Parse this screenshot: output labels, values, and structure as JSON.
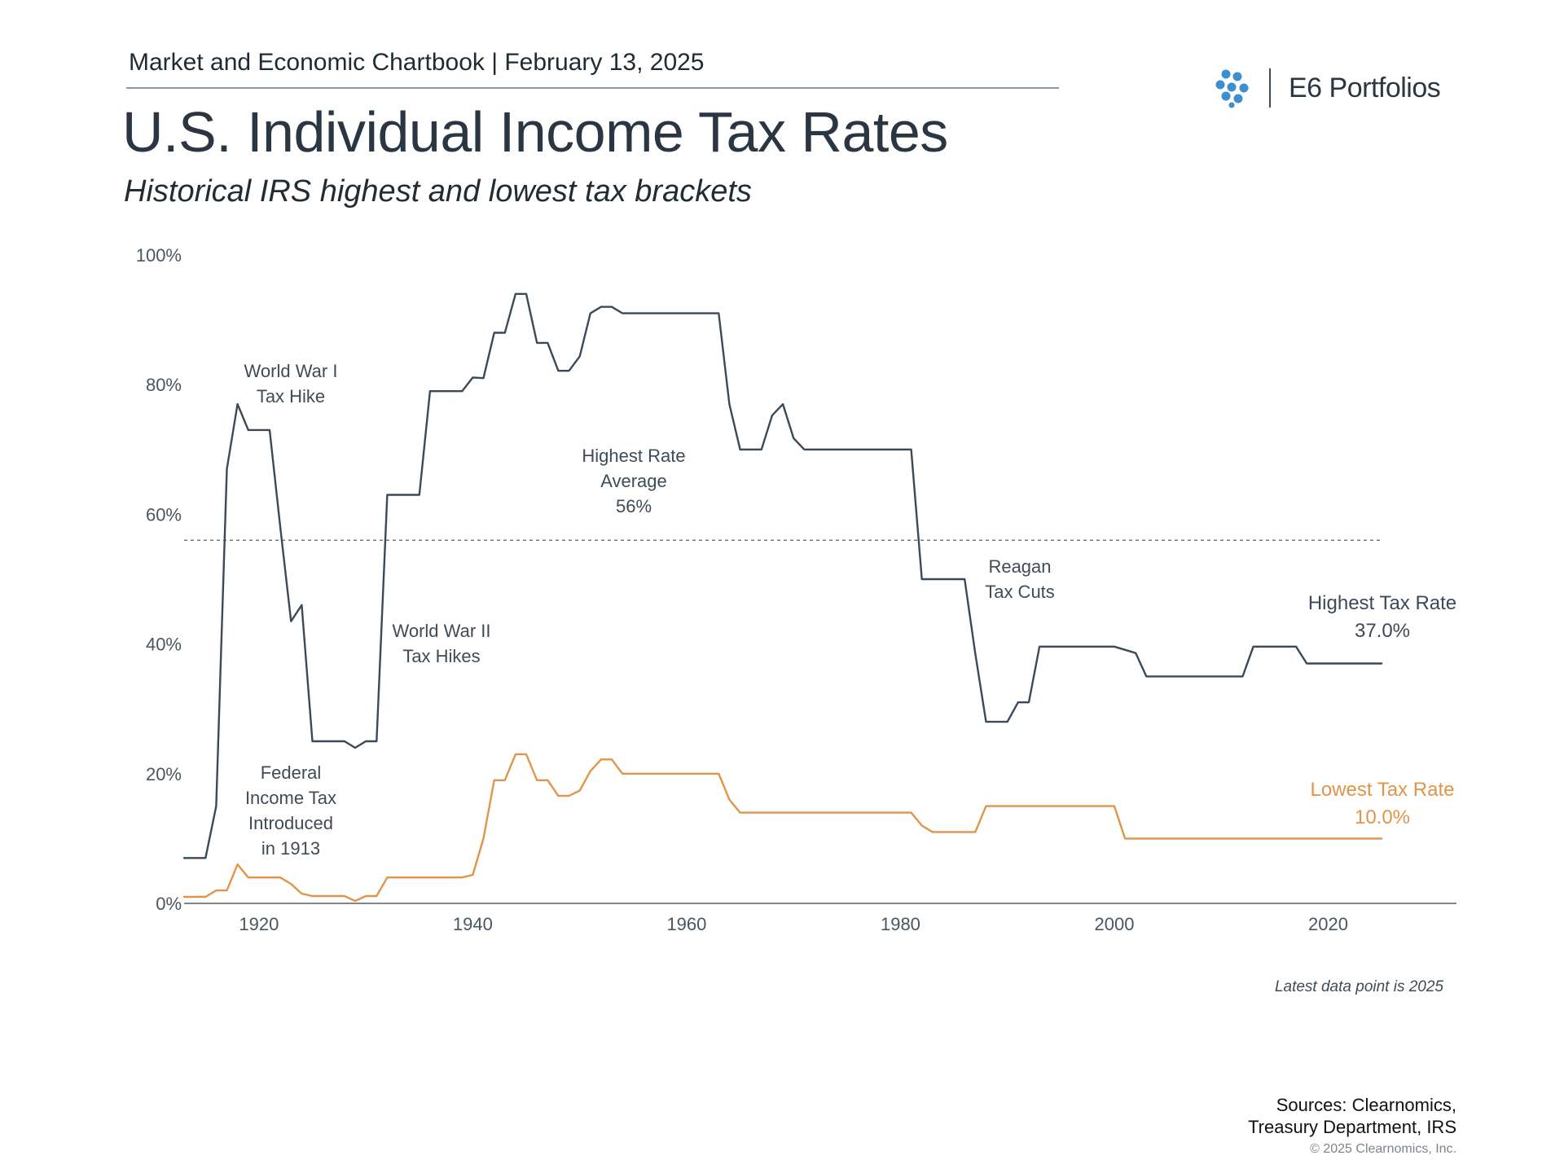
{
  "header": {
    "chartbook": "Market and Economic Chartbook | February 13, 2025",
    "brand": "E6 Portfolios",
    "title": "U.S. Individual Income Tax Rates",
    "subtitle": "Historical IRS highest and lowest tax brackets"
  },
  "annotations": {
    "ww1": [
      "World War I",
      "Tax Hike"
    ],
    "ww2": [
      "World War II",
      "Tax Hikes"
    ],
    "average": [
      "Highest Rate",
      "Average",
      "56%"
    ],
    "reagan": [
      "Reagan",
      "Tax Cuts"
    ],
    "federal": [
      "Federal",
      "Income Tax",
      "Introduced",
      "in 1913"
    ]
  },
  "note": "Latest data point is 2025",
  "footer": {
    "sources_line1": "Sources: Clearnomics,",
    "sources_line2": "Treasury Department, IRS",
    "copyright": "© 2025 Clearnomics, Inc."
  },
  "colors": {
    "highest": "#3b4a58",
    "lowest": "#e0954a",
    "average_line": "#6f7b86",
    "axis": "#555f68",
    "logo": "#3d8fd0"
  },
  "chart_data": {
    "type": "line",
    "xlim": [
      1913,
      2032
    ],
    "ylim": [
      0,
      100
    ],
    "x_ticks": [
      1920,
      1940,
      1960,
      1980,
      2000,
      2020
    ],
    "x_tick_labels": [
      "1920",
      "1940",
      "1960",
      "1980",
      "2000",
      "2020"
    ],
    "y_ticks": [
      0,
      20,
      40,
      60,
      80,
      100
    ],
    "y_tick_labels": [
      "0%",
      "20%",
      "40%",
      "60%",
      "80%",
      "100%"
    ],
    "grid": false,
    "average": {
      "value": 56,
      "label": "Highest Rate Average 56%"
    },
    "series": [
      {
        "name": "Highest Tax Rate",
        "end_label": "37.0%",
        "points": [
          [
            1913,
            7
          ],
          [
            1915,
            7
          ],
          [
            1916,
            15
          ],
          [
            1917,
            67
          ],
          [
            1918,
            77
          ],
          [
            1919,
            73
          ],
          [
            1921,
            73
          ],
          [
            1922,
            58
          ],
          [
            1923,
            43.5
          ],
          [
            1924,
            46
          ],
          [
            1925,
            25
          ],
          [
            1928,
            25
          ],
          [
            1929,
            24
          ],
          [
            1930,
            25
          ],
          [
            1931,
            25
          ],
          [
            1932,
            63
          ],
          [
            1935,
            63
          ],
          [
            1936,
            79
          ],
          [
            1939,
            79
          ],
          [
            1940,
            81.1
          ],
          [
            1941,
            81
          ],
          [
            1942,
            88
          ],
          [
            1943,
            88
          ],
          [
            1944,
            94
          ],
          [
            1945,
            94
          ],
          [
            1946,
            86.45
          ],
          [
            1947,
            86.45
          ],
          [
            1948,
            82.13
          ],
          [
            1949,
            82.13
          ],
          [
            1950,
            84.36
          ],
          [
            1951,
            91
          ],
          [
            1952,
            92
          ],
          [
            1953,
            92
          ],
          [
            1954,
            91
          ],
          [
            1963,
            91
          ],
          [
            1964,
            77
          ],
          [
            1965,
            70
          ],
          [
            1967,
            70
          ],
          [
            1968,
            75.25
          ],
          [
            1969,
            77
          ],
          [
            1970,
            71.75
          ],
          [
            1971,
            70
          ],
          [
            1981,
            70
          ],
          [
            1982,
            50
          ],
          [
            1986,
            50
          ],
          [
            1987,
            38.5
          ],
          [
            1988,
            28
          ],
          [
            1990,
            28
          ],
          [
            1991,
            31
          ],
          [
            1992,
            31
          ],
          [
            1993,
            39.6
          ],
          [
            2000,
            39.6
          ],
          [
            2002,
            38.6
          ],
          [
            2003,
            35
          ],
          [
            2012,
            35
          ],
          [
            2013,
            39.6
          ],
          [
            2017,
            39.6
          ],
          [
            2018,
            37
          ],
          [
            2025,
            37
          ]
        ]
      },
      {
        "name": "Lowest Tax Rate",
        "end_label": "10.0%",
        "points": [
          [
            1913,
            1
          ],
          [
            1915,
            1
          ],
          [
            1916,
            2
          ],
          [
            1917,
            2
          ],
          [
            1918,
            6
          ],
          [
            1919,
            4
          ],
          [
            1922,
            4
          ],
          [
            1923,
            3
          ],
          [
            1924,
            1.5
          ],
          [
            1925,
            1.125
          ],
          [
            1928,
            1.125
          ],
          [
            1929,
            0.375
          ],
          [
            1930,
            1.125
          ],
          [
            1931,
            1.125
          ],
          [
            1932,
            4
          ],
          [
            1939,
            4
          ],
          [
            1940,
            4.4
          ],
          [
            1941,
            10
          ],
          [
            1942,
            19
          ],
          [
            1943,
            19
          ],
          [
            1944,
            23
          ],
          [
            1945,
            23
          ],
          [
            1946,
            19
          ],
          [
            1947,
            19
          ],
          [
            1948,
            16.6
          ],
          [
            1949,
            16.6
          ],
          [
            1950,
            17.4
          ],
          [
            1951,
            20.4
          ],
          [
            1952,
            22.2
          ],
          [
            1953,
            22.2
          ],
          [
            1954,
            20
          ],
          [
            1963,
            20
          ],
          [
            1964,
            16
          ],
          [
            1965,
            14
          ],
          [
            1981,
            14
          ],
          [
            1982,
            12
          ],
          [
            1983,
            11
          ],
          [
            1986,
            11
          ],
          [
            1987,
            11
          ],
          [
            1988,
            15
          ],
          [
            2000,
            15
          ],
          [
            2001,
            10
          ],
          [
            2025,
            10
          ]
        ]
      }
    ]
  }
}
